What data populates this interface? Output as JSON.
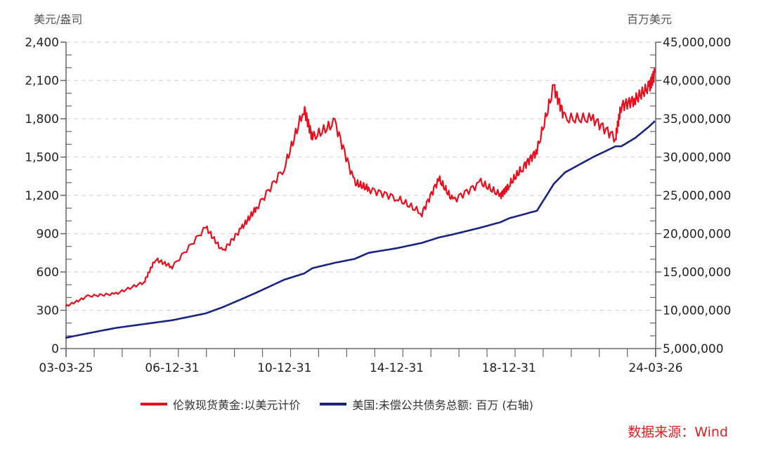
{
  "chart_data": {
    "type": "line",
    "title": "",
    "left_axis": {
      "unit_label": "美元/盎司",
      "ylim": [
        0,
        2400
      ],
      "ticks": [
        "0",
        "300",
        "600",
        "900",
        "1,200",
        "1,500",
        "1,800",
        "2,100",
        "2,400"
      ]
    },
    "right_axis": {
      "unit_label": "百万美元",
      "ylim": [
        5000000,
        45000000
      ],
      "ticks": [
        "5,000,000",
        "10,000,000",
        "15,000,000",
        "20,000,000",
        "25,000,000",
        "30,000,000",
        "35,000,000",
        "40,000,000",
        "45,000,000"
      ]
    },
    "x_tick_labels": [
      "03-03-25",
      "06-12-31",
      "10-12-31",
      "14-12-31",
      "18-12-31",
      "24-03-26"
    ],
    "grid": true,
    "legend_position": "bottom",
    "x": [
      2003.2,
      2004.0,
      2005.0,
      2006.0,
      2006.4,
      2007.0,
      2008.2,
      2008.8,
      2009.5,
      2010.0,
      2011.0,
      2011.7,
      2012.0,
      2012.8,
      2013.5,
      2014.0,
      2015.0,
      2015.9,
      2016.5,
      2017.0,
      2018.0,
      2018.7,
      2019.0,
      2019.5,
      2020.0,
      2020.6,
      2021.0,
      2022.0,
      2022.8,
      2023.0,
      2023.5,
      2024.0,
      2024.2
    ],
    "series": [
      {
        "name": "伦敦现货黄金:以美元计价",
        "axis": "left",
        "color": "#e8101f",
        "values": [
          330,
          410,
          430,
          520,
          700,
          640,
          950,
          760,
          950,
          1100,
          1420,
          1880,
          1650,
          1770,
          1300,
          1250,
          1180,
          1060,
          1330,
          1160,
          1300,
          1200,
          1280,
          1420,
          1550,
          2050,
          1800,
          1800,
          1650,
          1900,
          1950,
          2050,
          2160
        ]
      },
      {
        "name": "美国:未偿公共债务总额: 百万 (右轴)",
        "axis": "right",
        "color": "#1a237e",
        "values": [
          6400000,
          7000000,
          7700000,
          8200000,
          8400000,
          8700000,
          9600000,
          10400000,
          11500000,
          12300000,
          14000000,
          14800000,
          15500000,
          16200000,
          16700000,
          17500000,
          18100000,
          18800000,
          19500000,
          19900000,
          20800000,
          21500000,
          22000000,
          22500000,
          23000000,
          26500000,
          28000000,
          30000000,
          31400000,
          31400000,
          32500000,
          34000000,
          34700000
        ]
      }
    ]
  },
  "legend": {
    "gold_label": "伦敦现货黄金:以美元计价",
    "debt_label": "美国:未偿公共债务总额: 百万 (右轴)"
  },
  "source": "数据来源：Wind"
}
